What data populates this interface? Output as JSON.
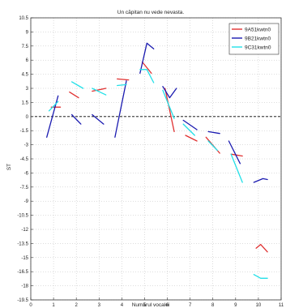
{
  "chart_data": {
    "type": "line",
    "title": "Un căpitan nu vede nevasta.",
    "xlabel": "Numarul vocalei",
    "ylabel": "ST",
    "xlim": [
      0,
      11
    ],
    "ylim": [
      -19.5,
      10.5
    ],
    "xticks": [
      0,
      1,
      2,
      3,
      4,
      5,
      6,
      7,
      8,
      9,
      10,
      11
    ],
    "yticks": [
      10.5,
      9,
      7.5,
      6,
      4.5,
      3,
      1.5,
      0,
      -1.5,
      -3,
      -4.5,
      -6,
      -7.5,
      -9,
      -10.5,
      -12,
      -13.5,
      -15,
      -16.5,
      -18,
      -19.5
    ],
    "ytick_labels": [
      "10.5",
      "9",
      "7.5",
      "6",
      "4.5",
      "3",
      "1.5",
      "0",
      "-1.5",
      "-3",
      "-4.5",
      "-6",
      "-7.5",
      "-9",
      "-10.5",
      "-12",
      "-13.5",
      "-15",
      "-16.5",
      "-18",
      "-19.5"
    ],
    "grid": true,
    "reference_line": {
      "y": 0,
      "style": "dashed"
    },
    "legend_position": "top-right",
    "series": [
      {
        "name": "9A51kwtn0",
        "color": "#e03030",
        "segments": [
          [
            [
              0.9,
              1.0
            ],
            [
              1.3,
              1.0
            ]
          ],
          [
            [
              1.7,
              2.6
            ],
            [
              2.1,
              2.0
            ]
          ],
          [
            [
              2.7,
              2.7
            ],
            [
              3.3,
              3.0
            ]
          ],
          [
            [
              3.8,
              4.0
            ],
            [
              4.3,
              3.9
            ]
          ],
          [
            [
              4.9,
              5.8
            ],
            [
              5.3,
              4.6
            ]
          ],
          [
            [
              5.9,
              3.0
            ],
            [
              6.3,
              -1.6
            ]
          ],
          [
            [
              6.8,
              -2.0
            ],
            [
              7.3,
              -2.6
            ]
          ],
          [
            [
              7.7,
              -2.2
            ],
            [
              8.3,
              -3.9
            ]
          ],
          [
            [
              8.8,
              -4.0
            ],
            [
              9.3,
              -4.2
            ]
          ],
          [
            [
              9.9,
              -14.0
            ],
            [
              10.1,
              -13.6
            ],
            [
              10.4,
              -14.4
            ]
          ]
        ]
      },
      {
        "name": "9B21kwtn0",
        "color": "#1a1ab0",
        "segments": [
          [
            [
              0.7,
              -2.2
            ],
            [
              1.2,
              2.2
            ]
          ],
          [
            [
              1.8,
              0.2
            ],
            [
              2.2,
              -0.8
            ]
          ],
          [
            [
              2.7,
              0.2
            ],
            [
              3.2,
              -0.8
            ]
          ],
          [
            [
              3.7,
              -2.2
            ],
            [
              4.2,
              3.8
            ]
          ],
          [
            [
              4.8,
              4.6
            ],
            [
              5.1,
              7.8
            ],
            [
              5.4,
              7.2
            ]
          ],
          [
            [
              5.8,
              3.2
            ],
            [
              6.1,
              2.0
            ],
            [
              6.4,
              3.0
            ]
          ],
          [
            [
              6.7,
              -0.4
            ],
            [
              7.3,
              -1.4
            ]
          ],
          [
            [
              7.8,
              -1.6
            ],
            [
              8.3,
              -1.8
            ]
          ],
          [
            [
              8.7,
              -2.6
            ],
            [
              9.2,
              -5.0
            ]
          ],
          [
            [
              9.8,
              -7.0
            ],
            [
              10.2,
              -6.6
            ],
            [
              10.4,
              -6.7
            ]
          ]
        ]
      },
      {
        "name": "9C31kwtn0",
        "color": "#22e0e8",
        "segments": [
          [
            [
              0.8,
              0.6
            ],
            [
              1.2,
              1.6
            ]
          ],
          [
            [
              1.8,
              3.7
            ],
            [
              2.3,
              3.0
            ]
          ],
          [
            [
              2.7,
              3.0
            ],
            [
              3.3,
              2.3
            ]
          ],
          [
            [
              3.8,
              3.3
            ],
            [
              4.2,
              3.4
            ]
          ],
          [
            [
              4.8,
              5.0
            ],
            [
              5.1,
              5.0
            ],
            [
              5.4,
              3.6
            ]
          ],
          [
            [
              5.8,
              2.8
            ],
            [
              6.3,
              -0.2
            ]
          ],
          [
            [
              6.7,
              -0.8
            ],
            [
              7.2,
              -2.0
            ]
          ],
          [
            [
              7.8,
              -2.6
            ],
            [
              8.2,
              -3.6
            ]
          ],
          [
            [
              8.8,
              -4.0
            ],
            [
              9.3,
              -7.0
            ]
          ],
          [
            [
              9.8,
              -16.8
            ],
            [
              10.1,
              -17.2
            ],
            [
              10.4,
              -17.2
            ]
          ]
        ]
      }
    ]
  }
}
